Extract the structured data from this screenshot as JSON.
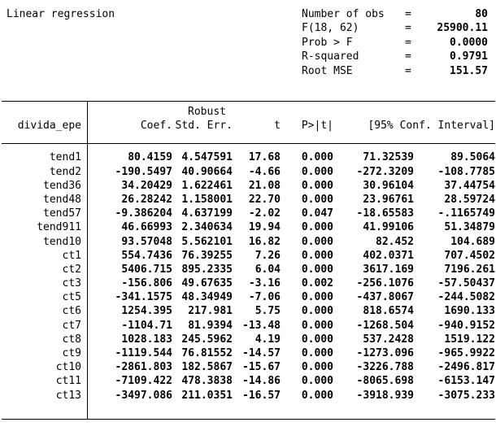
{
  "header": {
    "title": "Linear regression",
    "stats": [
      {
        "label": "Number of obs",
        "eq": "=",
        "value": "80"
      },
      {
        "label": "F(18, 62)",
        "eq": "=",
        "value": "25900.11"
      },
      {
        "label": "Prob > F",
        "eq": "=",
        "value": "0.0000"
      },
      {
        "label": "R-squared",
        "eq": "=",
        "value": "0.9791"
      },
      {
        "label": "Root MSE",
        "eq": "=",
        "value": "151.57"
      }
    ]
  },
  "table": {
    "depvar": "divida_epe",
    "robust_label": "Robust",
    "columns": [
      "Coef.",
      "Std. Err.",
      "t",
      "P>|t|",
      "[95% Conf. Interval]"
    ],
    "rows": [
      {
        "var": "tend1",
        "coef": "80.4159",
        "se": "4.547591",
        "t": "17.68",
        "p": "0.000",
        "ci_low": "71.32539",
        "ci_high": "89.5064"
      },
      {
        "var": "tend2",
        "coef": "-190.5497",
        "se": "40.90664",
        "t": "-4.66",
        "p": "0.000",
        "ci_low": "-272.3209",
        "ci_high": "-108.7785"
      },
      {
        "var": "tend36",
        "coef": "34.20429",
        "se": "1.622461",
        "t": "21.08",
        "p": "0.000",
        "ci_low": "30.96104",
        "ci_high": "37.44754"
      },
      {
        "var": "tend48",
        "coef": "26.28242",
        "se": "1.158001",
        "t": "22.70",
        "p": "0.000",
        "ci_low": "23.96761",
        "ci_high": "28.59724"
      },
      {
        "var": "tend57",
        "coef": "-9.386204",
        "se": "4.637199",
        "t": "-2.02",
        "p": "0.047",
        "ci_low": "-18.65583",
        "ci_high": "-.1165749"
      },
      {
        "var": "tend911",
        "coef": "46.66993",
        "se": "2.340634",
        "t": "19.94",
        "p": "0.000",
        "ci_low": "41.99106",
        "ci_high": "51.34879"
      },
      {
        "var": "tend10",
        "coef": "93.57048",
        "se": "5.562101",
        "t": "16.82",
        "p": "0.000",
        "ci_low": "82.452",
        "ci_high": "104.689"
      },
      {
        "var": "ct1",
        "coef": "554.7436",
        "se": "76.39255",
        "t": "7.26",
        "p": "0.000",
        "ci_low": "402.0371",
        "ci_high": "707.4502"
      },
      {
        "var": "ct2",
        "coef": "5406.715",
        "se": "895.2335",
        "t": "6.04",
        "p": "0.000",
        "ci_low": "3617.169",
        "ci_high": "7196.261"
      },
      {
        "var": "ct3",
        "coef": "-156.806",
        "se": "49.67635",
        "t": "-3.16",
        "p": "0.002",
        "ci_low": "-256.1076",
        "ci_high": "-57.50437"
      },
      {
        "var": "ct5",
        "coef": "-341.1575",
        "se": "48.34949",
        "t": "-7.06",
        "p": "0.000",
        "ci_low": "-437.8067",
        "ci_high": "-244.5082"
      },
      {
        "var": "ct6",
        "coef": "1254.395",
        "se": "217.981",
        "t": "5.75",
        "p": "0.000",
        "ci_low": "818.6574",
        "ci_high": "1690.133"
      },
      {
        "var": "ct7",
        "coef": "-1104.71",
        "se": "81.9394",
        "t": "-13.48",
        "p": "0.000",
        "ci_low": "-1268.504",
        "ci_high": "-940.9152"
      },
      {
        "var": "ct8",
        "coef": "1028.183",
        "se": "245.5962",
        "t": "4.19",
        "p": "0.000",
        "ci_low": "537.2428",
        "ci_high": "1519.122"
      },
      {
        "var": "ct9",
        "coef": "-1119.544",
        "se": "76.81552",
        "t": "-14.57",
        "p": "0.000",
        "ci_low": "-1273.096",
        "ci_high": "-965.9922"
      },
      {
        "var": "ct10",
        "coef": "-2861.803",
        "se": "182.5867",
        "t": "-15.67",
        "p": "0.000",
        "ci_low": "-3226.788",
        "ci_high": "-2496.817"
      },
      {
        "var": "ct11",
        "coef": "-7109.422",
        "se": "478.3838",
        "t": "-14.86",
        "p": "0.000",
        "ci_low": "-8065.698",
        "ci_high": "-6153.147"
      },
      {
        "var": "ct13",
        "coef": "-3497.086",
        "se": "211.0351",
        "t": "-16.57",
        "p": "0.000",
        "ci_low": "-3918.939",
        "ci_high": "-3075.233"
      }
    ]
  }
}
